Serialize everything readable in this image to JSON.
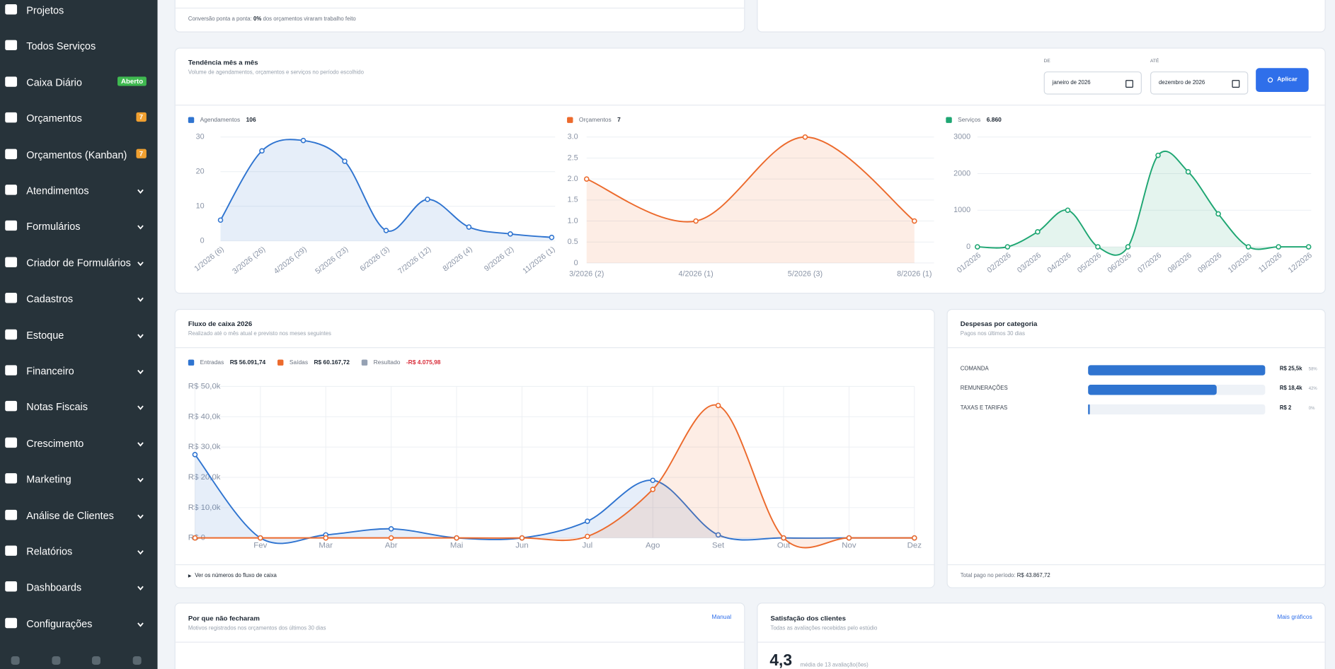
{
  "sidebar": {
    "items": [
      {
        "label": "Projetos"
      },
      {
        "label": "Todos Serviços"
      },
      {
        "label": "Caixa Diário",
        "badge": "Aberto",
        "badge_color": "#3fb950"
      },
      {
        "label": "Orçamentos",
        "badge": "7",
        "badge_color": "#f0a030"
      },
      {
        "label": "Orçamentos (Kanban)",
        "badge": "7",
        "badge_color": "#f0a030"
      },
      {
        "label": "Atendimentos",
        "expandable": true
      },
      {
        "label": "Formulários",
        "expandable": true
      },
      {
        "label": "Criador de Formulários",
        "expandable": true
      },
      {
        "label": "Cadastros",
        "expandable": true
      },
      {
        "label": "Estoque",
        "expandable": true
      },
      {
        "label": "Financeiro",
        "expandable": true
      },
      {
        "label": "Notas Fiscais",
        "expandable": true
      },
      {
        "label": "Crescimento",
        "expandable": true
      },
      {
        "label": "Marketing",
        "expandable": true
      },
      {
        "label": "Análise de Clientes",
        "expandable": true
      },
      {
        "label": "Relatórios",
        "expandable": true
      },
      {
        "label": "Dashboards",
        "expandable": true
      },
      {
        "label": "Configurações",
        "expandable": true
      }
    ]
  },
  "conversion": {
    "prefix": "Conversão ponta a ponta:",
    "highlight": "0%",
    "suffix": "dos orçamentos viraram trabalho feito"
  },
  "trend": {
    "title": "Tendência mês a mês",
    "subtitle": "Volume de agendamentos, orçamentos e serviços no período escolhido",
    "from_label": "DE",
    "from_value": "janeiro de 2026",
    "to_label": "ATÉ",
    "to_value": "dezembro de 2026",
    "button": "Aplicar",
    "charts": [
      {
        "type": "line",
        "categories": [
          "1/2026 (6)",
          "3/2026 (26)",
          "4/2026 (29)",
          "5/2026 (23)",
          "6/2026 (3)",
          "7/2026 (12)",
          "8/2026 (4)",
          "9/2026 (2)",
          "11/2026 (1)"
        ],
        "series": [
          {
            "name": "Agendamentos",
            "total": "106",
            "color": "#2f74d0",
            "values": [
              6,
              26,
              29,
              23,
              3,
              12,
              4,
              2,
              1
            ]
          }
        ],
        "ylim": [
          0,
          30
        ],
        "yticks": [
          0,
          10,
          20,
          30
        ],
        "grid": true
      },
      {
        "type": "line",
        "categories": [
          "3/2026 (2)",
          "4/2026 (1)",
          "5/2026 (3)",
          "8/2026 (1)"
        ],
        "series": [
          {
            "name": "Orçamentos",
            "total": "7",
            "color": "#ec6a2c",
            "values": [
              2,
              1,
              3,
              1
            ]
          }
        ],
        "ylim": [
          0,
          3
        ],
        "yticks": [
          0,
          0.5,
          {
            "value": 1,
            "label": "1.0"
          },
          1.5,
          {
            "value": 2,
            "label": "2.0"
          },
          2.5,
          {
            "value": 3,
            "label": "3.0"
          }
        ],
        "grid": true
      },
      {
        "type": "line",
        "categories": [
          "01/2026",
          "02/2026",
          "03/2026",
          "04/2026",
          "05/2026",
          "06/2026",
          "07/2026",
          "08/2026",
          "09/2026",
          "10/2026",
          "11/2026",
          "12/2026"
        ],
        "series": [
          {
            "name": "Serviços",
            "total": "6.860",
            "color": "#1ea672",
            "values": [
              0,
              0,
              410,
              1000,
              0,
              0,
              2500,
              2050,
              900,
              0,
              0,
              0
            ]
          }
        ],
        "ylim": [
          0,
          3000
        ],
        "yticks": [
          0,
          1000,
          2000,
          3000
        ],
        "grid": true
      }
    ]
  },
  "cashflow": {
    "title": "Fluxo de caixa 2026",
    "subtitle": "Realizado até o mês atual e previsto nos meses seguintes",
    "footer": "Ver os números do fluxo de caixa",
    "chart": {
      "type": "line",
      "categories": [
        null,
        "Fev",
        "Mar",
        "Abr",
        "Mai",
        "Jun",
        "Jul",
        "Ago",
        "Set",
        "Out",
        "Nov",
        "Dez"
      ],
      "series": [
        {
          "name": "Entradas",
          "total": "R$ 56.091,74",
          "color": "#2f74d0",
          "values": [
            27500,
            0,
            1000,
            3000,
            0,
            0,
            5500,
            19000,
            1000,
            0,
            0,
            0
          ]
        },
        {
          "name": "Saídas",
          "total": "R$ 60.167,72",
          "color": "#ec6a2c",
          "values": [
            0,
            0,
            0,
            0,
            0,
            0,
            500,
            16000,
            43700,
            0,
            0,
            0
          ]
        }
      ],
      "result": {
        "name": "Resultado",
        "total": "-R$ 4.075,98",
        "color": "#95a1b3",
        "total_color": "#d92d3a"
      },
      "ylim": [
        0,
        50000
      ],
      "yticks": [
        {
          "value": 0,
          "label": "R$ 0"
        },
        {
          "value": 10000,
          "label": "R$ 10,0k"
        },
        {
          "value": 20000,
          "label": "R$ 20,0k"
        },
        {
          "value": 30000,
          "label": "R$ 30,0k"
        },
        {
          "value": 40000,
          "label": "R$ 40,0k"
        },
        {
          "value": 50000,
          "label": "R$ 50,0k"
        }
      ],
      "grid": true,
      "xgrid": true
    }
  },
  "expenses": {
    "title": "Despesas por categoria",
    "subtitle": "Pagos nos últimos 30 dias",
    "chart": {
      "type": "hbar",
      "categories": [
        "COMANDA",
        "REMUNERAÇÕES",
        "TAXAS E TARIFAS"
      ],
      "amounts": [
        "R$ 25,5k",
        "R$ 18,4k",
        "R$ 2"
      ],
      "values": [
        58,
        42,
        0
      ],
      "value_labels": [
        "58%",
        "42%",
        "0%"
      ],
      "color": "#2f74d0"
    },
    "total_label": "Total pago no período:",
    "total": "R$ 43.867,72"
  },
  "reasons": {
    "title": "Por que não fecharam",
    "subtitle": "Motivos registrados nos orçamentos dos últimos 30 dias",
    "link": "Manual"
  },
  "satisfaction": {
    "title": "Satisfação dos clientes",
    "subtitle": "Todas as avaliações recebidas pelo estúdio",
    "link": "Mais gráficos",
    "score": "4,3",
    "score_note": "média de 13 avaliação(ões)"
  }
}
